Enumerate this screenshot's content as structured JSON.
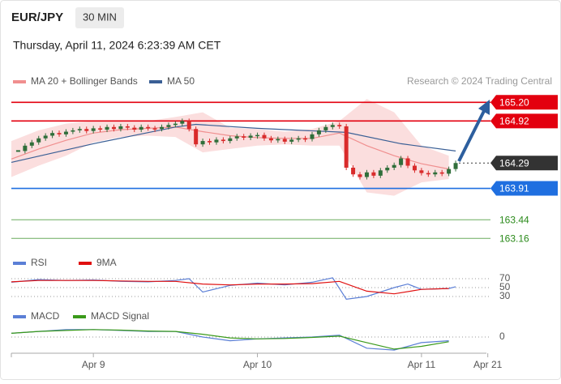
{
  "header": {
    "symbol": "EUR/JPY",
    "interval": "30 MIN",
    "timestamp": "Thursday, April 11, 2024 6:23:39 AM CET",
    "credit": "Research © 2024 Trading Central"
  },
  "chart_data": [
    {
      "type": "candlestick",
      "x": [
        -11,
        -10,
        -9,
        -8,
        -7,
        -6,
        -5,
        -4,
        -3,
        -2,
        -1,
        0,
        1,
        2,
        3,
        4,
        5,
        6,
        7,
        8,
        9,
        10,
        11,
        12,
        13,
        14,
        15,
        16,
        17,
        18,
        19,
        20,
        21,
        22,
        23,
        24,
        25,
        26,
        27,
        28,
        29,
        30,
        31,
        32,
        33,
        34,
        35,
        36,
        37,
        38,
        39,
        40,
        41,
        42,
        43,
        44,
        45,
        46,
        47,
        48,
        49,
        50,
        51,
        52,
        53
      ],
      "values": [
        164.47,
        164.55,
        164.6,
        164.66,
        164.7,
        164.74,
        164.72,
        164.76,
        164.78,
        164.8,
        164.77,
        164.81,
        164.79,
        164.83,
        164.8,
        164.84,
        164.82,
        164.79,
        164.83,
        164.81,
        164.8,
        164.83,
        164.86,
        164.88,
        164.92,
        164.8,
        164.57,
        164.62,
        164.6,
        164.64,
        164.62,
        164.66,
        164.69,
        164.67,
        164.7,
        164.71,
        164.66,
        164.63,
        164.65,
        164.61,
        164.64,
        164.66,
        164.65,
        164.72,
        164.78,
        164.83,
        164.86,
        164.84,
        164.22,
        164.12,
        164.08,
        164.15,
        164.1,
        164.18,
        164.22,
        164.26,
        164.36,
        164.25,
        164.18,
        164.14,
        164.12,
        164.15,
        164.13,
        164.2,
        164.29
      ],
      "up_color": "#2f6e3a",
      "down_color": "#d92b2b",
      "xlim": [
        -12,
        57.5
      ],
      "ylim": [
        163.03,
        165.58
      ],
      "series": [
        {
          "name": "MA 20 + Bollinger Bands",
          "color": "#f08f8f",
          "band_color": "#fbdede",
          "x": [
            -12,
            -8,
            -4,
            0,
            4,
            8,
            12,
            16,
            20,
            24,
            28,
            32,
            36,
            40,
            44,
            48,
            52
          ],
          "values": [
            164.35,
            164.5,
            164.63,
            164.74,
            164.79,
            164.81,
            164.83,
            164.76,
            164.7,
            164.67,
            164.66,
            164.66,
            164.74,
            164.55,
            164.4,
            164.28,
            164.2
          ],
          "upper": [
            164.62,
            164.78,
            164.88,
            164.92,
            164.92,
            164.92,
            164.98,
            165.05,
            164.82,
            164.8,
            164.76,
            164.8,
            164.92,
            165.25,
            165.05,
            164.55,
            164.4
          ],
          "lower": [
            164.08,
            164.25,
            164.4,
            164.6,
            164.68,
            164.7,
            164.68,
            164.45,
            164.5,
            164.55,
            164.57,
            164.55,
            164.55,
            163.85,
            163.8,
            164.0,
            164.05
          ]
        },
        {
          "name": "MA 50",
          "color": "#3a5f95",
          "x": [
            -12,
            0,
            12,
            15,
            24,
            37,
            45,
            53
          ],
          "values": [
            164.3,
            164.58,
            164.83,
            164.87,
            164.81,
            164.75,
            164.58,
            164.47
          ]
        }
      ],
      "levels": [
        {
          "value": 165.2,
          "label": "165.20",
          "color": "#e3000f",
          "box": true,
          "line": "solid"
        },
        {
          "value": 164.92,
          "color": "#e3000f",
          "box": true,
          "line": "solid"
        },
        {
          "value": 164.29,
          "color": "#333333",
          "box": true,
          "line": "dotted"
        },
        {
          "value": 163.91,
          "color": "#1f6fe0",
          "box": true,
          "line": "solid"
        },
        {
          "value": 163.44,
          "color": "#2a8a1a",
          "box": false,
          "line": "thin"
        },
        {
          "value": 163.16,
          "color": "#2a8a1a",
          "box": false,
          "line": "thin"
        }
      ]
    },
    {
      "type": "line",
      "xlim": [
        -12,
        57.5
      ],
      "ylim": [
        0,
        100
      ],
      "yticks": [
        70,
        50,
        30
      ],
      "series": [
        {
          "name": "RSI",
          "color": "#5b7fd6",
          "x": [
            -12,
            -8,
            -4,
            0,
            4,
            8,
            12,
            14,
            16,
            20,
            24,
            28,
            32,
            35,
            37,
            40,
            44,
            46,
            48,
            52,
            53
          ],
          "values": [
            62,
            68,
            66,
            67,
            64,
            63,
            66,
            70,
            40,
            55,
            60,
            56,
            62,
            72,
            24,
            30,
            50,
            58,
            46,
            48,
            52
          ]
        },
        {
          "name": "9MA",
          "color": "#e01010",
          "x": [
            -12,
            -8,
            -4,
            0,
            4,
            8,
            12,
            16,
            20,
            24,
            28,
            32,
            36,
            40,
            44,
            48,
            52
          ],
          "values": [
            63,
            66,
            66,
            66,
            65,
            64,
            64,
            58,
            56,
            58,
            58,
            59,
            64,
            42,
            36,
            46,
            48
          ]
        }
      ]
    },
    {
      "type": "line",
      "xlim": [
        -12,
        57.5
      ],
      "ylim": [
        -0.1,
        0.1
      ],
      "yticks": [
        0
      ],
      "xticks": [
        {
          "value": 0,
          "label": "Apr 9"
        },
        {
          "value": 24,
          "label": "Apr 10"
        },
        {
          "value": 48,
          "label": "Apr 11"
        },
        {
          "value": 57.7,
          "label": "Apr 21"
        }
      ],
      "series": [
        {
          "name": "MACD",
          "color": "#5b7fd6",
          "x": [
            -12,
            -8,
            -4,
            0,
            4,
            8,
            12,
            16,
            20,
            24,
            28,
            32,
            36,
            40,
            44,
            48,
            52
          ],
          "values": [
            0.02,
            0.03,
            0.04,
            0.04,
            0.035,
            0.03,
            0.03,
            0.0,
            -0.02,
            -0.01,
            -0.005,
            0.0,
            0.01,
            -0.06,
            -0.07,
            -0.03,
            -0.02
          ]
        },
        {
          "name": "MACD Signal",
          "color": "#3a9a1a",
          "x": [
            -12,
            -8,
            -4,
            0,
            4,
            8,
            12,
            16,
            20,
            24,
            28,
            32,
            36,
            40,
            44,
            48,
            52
          ],
          "values": [
            0.02,
            0.03,
            0.035,
            0.04,
            0.037,
            0.032,
            0.03,
            0.015,
            -0.005,
            -0.01,
            -0.008,
            -0.002,
            0.005,
            -0.03,
            -0.065,
            -0.05,
            -0.025
          ]
        }
      ]
    }
  ]
}
